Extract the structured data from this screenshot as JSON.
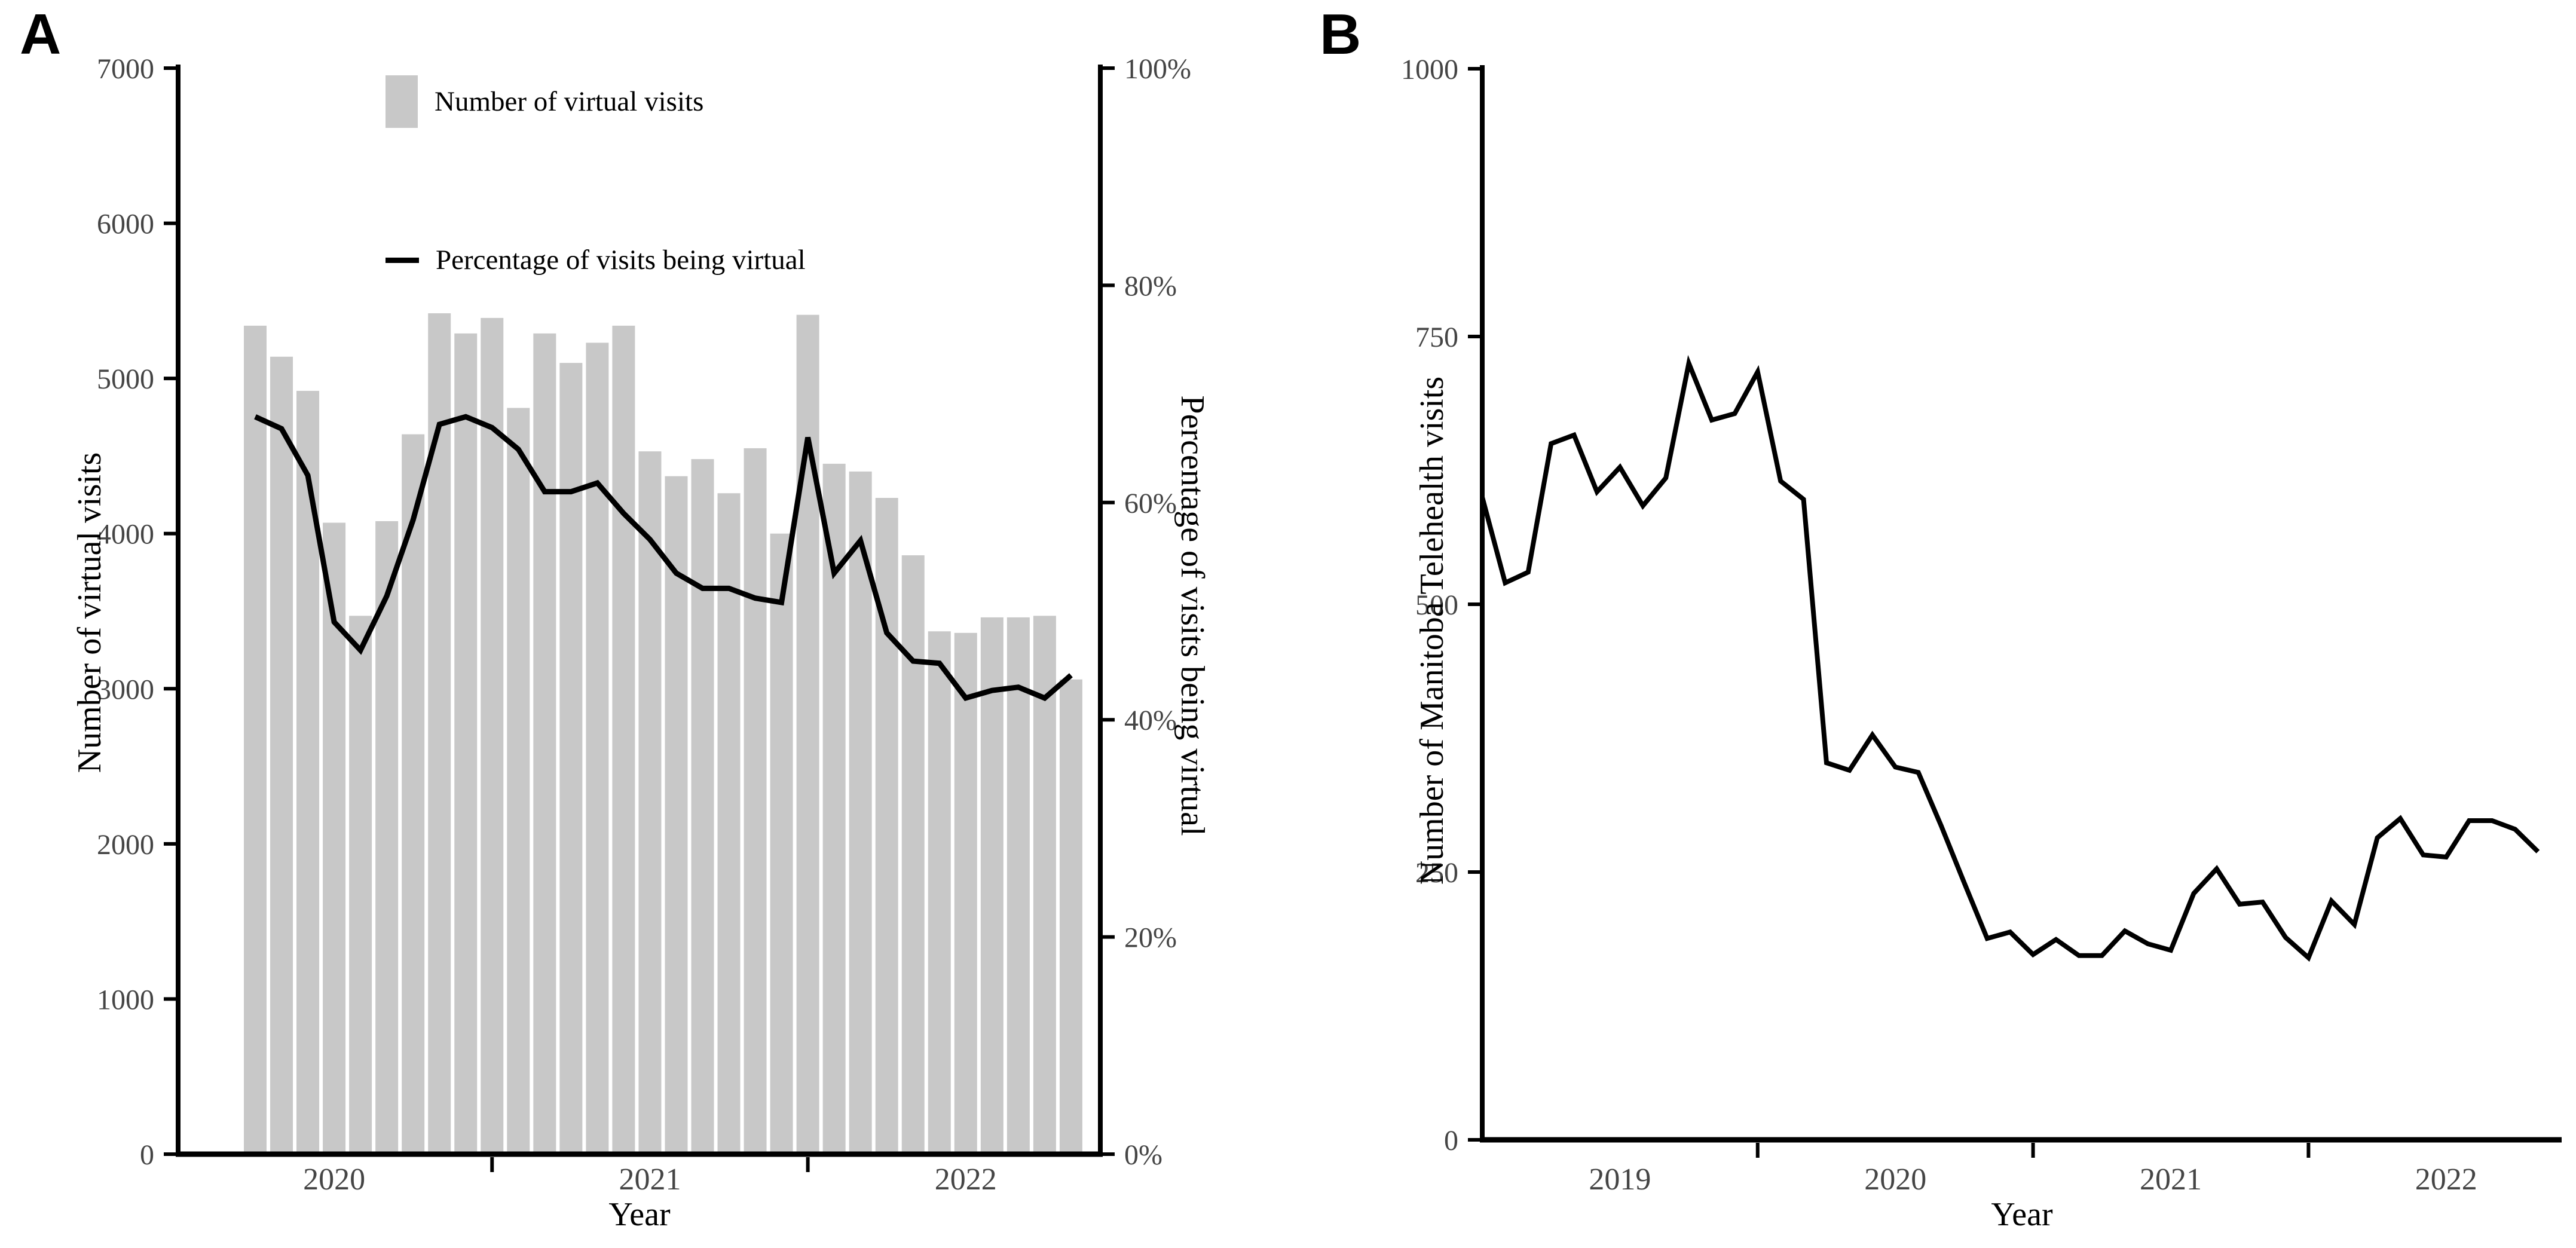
{
  "panels": {
    "a": {
      "letter": "A",
      "xlabel": "Year",
      "ylabel_left": "Number of virtual visits",
      "ylabel_right": "Percentage of visits being virtual",
      "legend": {
        "bars": "Number of virtual visits",
        "line": "Percentage of visits being virtual"
      }
    },
    "b": {
      "letter": "B",
      "xlabel": "Year",
      "ylabel": "Number of Manitoba Telehealth visits"
    }
  },
  "colors": {
    "bar": "#c8c8c8",
    "line": "#000000",
    "axis": "#000000",
    "tick_text": "#454545"
  },
  "chart_data": [
    {
      "id": "A",
      "type": "bar",
      "subtype": "bar-with-percentage-line",
      "title": "",
      "xlabel": "Year",
      "ylabel_left": "Number of virtual visits",
      "ylabel_right": "Percentage of visits being virtual",
      "legend_position": "top-inside",
      "grid": false,
      "months": [
        "2020-04",
        "2020-05",
        "2020-06",
        "2020-07",
        "2020-08",
        "2020-09",
        "2020-10",
        "2020-11",
        "2020-12",
        "2021-01",
        "2021-02",
        "2021-03",
        "2021-04",
        "2021-05",
        "2021-06",
        "2021-07",
        "2021-08",
        "2021-09",
        "2021-10",
        "2021-11",
        "2021-12",
        "2022-01",
        "2022-02",
        "2022-03",
        "2022-04",
        "2022-05",
        "2022-06",
        "2022-07",
        "2022-08",
        "2022-09",
        "2022-10",
        "2022-11"
      ],
      "x_year_labels": [
        "2020",
        "2021",
        "2022"
      ],
      "y_left": {
        "label": "Number of virtual visits",
        "min": 0,
        "max": 7000,
        "ticks": [
          0,
          1000,
          2000,
          3000,
          4000,
          5000,
          6000,
          7000
        ]
      },
      "y_right": {
        "label": "Percentage of visits being virtual",
        "min": 0,
        "max": 100,
        "ticks": [
          0,
          20,
          40,
          60,
          80,
          100
        ],
        "tick_labels": [
          "0%",
          "20%",
          "40%",
          "60%",
          "80%",
          "100%"
        ]
      },
      "series": [
        {
          "name": "Number of virtual visits",
          "type": "bar",
          "axis": "left",
          "values": [
            5340,
            5140,
            4920,
            4070,
            3470,
            4080,
            4640,
            5420,
            5290,
            5390,
            4810,
            5290,
            5100,
            5230,
            5340,
            4530,
            4370,
            4480,
            4260,
            4550,
            4000,
            5410,
            4450,
            4400,
            4230,
            3860,
            3370,
            3360,
            3460,
            3460,
            3470,
            3060
          ]
        },
        {
          "name": "Percentage of visits being virtual",
          "type": "line",
          "axis": "right",
          "values": [
            67.9,
            66.8,
            62.5,
            49.0,
            46.4,
            51.4,
            58.4,
            67.2,
            67.9,
            66.9,
            64.9,
            61.0,
            61.0,
            61.8,
            59.0,
            56.6,
            53.5,
            52.1,
            52.1,
            51.2,
            50.8,
            66.0,
            53.5,
            56.5,
            48.0,
            45.4,
            45.2,
            42.0,
            42.7,
            43.0,
            42.0,
            44.1
          ]
        }
      ]
    },
    {
      "id": "B",
      "type": "line",
      "title": "",
      "xlabel": "Year",
      "ylabel": "Number of Manitoba Telehealth visits",
      "grid": false,
      "months": [
        "2019-01",
        "2019-02",
        "2019-03",
        "2019-04",
        "2019-05",
        "2019-06",
        "2019-07",
        "2019-08",
        "2019-09",
        "2019-10",
        "2019-11",
        "2019-12",
        "2020-01",
        "2020-02",
        "2020-03",
        "2020-04",
        "2020-05",
        "2020-06",
        "2020-07",
        "2020-08",
        "2020-09",
        "2020-10",
        "2020-11",
        "2020-12",
        "2021-01",
        "2021-02",
        "2021-03",
        "2021-04",
        "2021-05",
        "2021-06",
        "2021-07",
        "2021-08",
        "2021-09",
        "2021-10",
        "2021-11",
        "2021-12",
        "2022-01",
        "2022-02",
        "2022-03",
        "2022-04",
        "2022-05",
        "2022-06",
        "2022-07",
        "2022-08",
        "2022-09",
        "2022-10",
        "2022-11"
      ],
      "x_year_labels": [
        "2019",
        "2020",
        "2021",
        "2022"
      ],
      "y": {
        "label": "Number of Manitoba Telehealth visits",
        "min": 0,
        "max": 1000,
        "ticks": [
          0,
          250,
          500,
          750,
          1000
        ]
      },
      "series": [
        {
          "name": "Number of Manitoba Telehealth visits",
          "type": "line",
          "axis": "left",
          "values": [
            600,
            520,
            530,
            650,
            658,
            605,
            628,
            592,
            618,
            725,
            672,
            678,
            717,
            615,
            598,
            352,
            345,
            378,
            348,
            343,
            293,
            240,
            188,
            194,
            173,
            187,
            172,
            172,
            195,
            183,
            177,
            230,
            253,
            220,
            222,
            189,
            170,
            223,
            201,
            282,
            300,
            266,
            264,
            298,
            298,
            290,
            269
          ]
        }
      ]
    }
  ]
}
